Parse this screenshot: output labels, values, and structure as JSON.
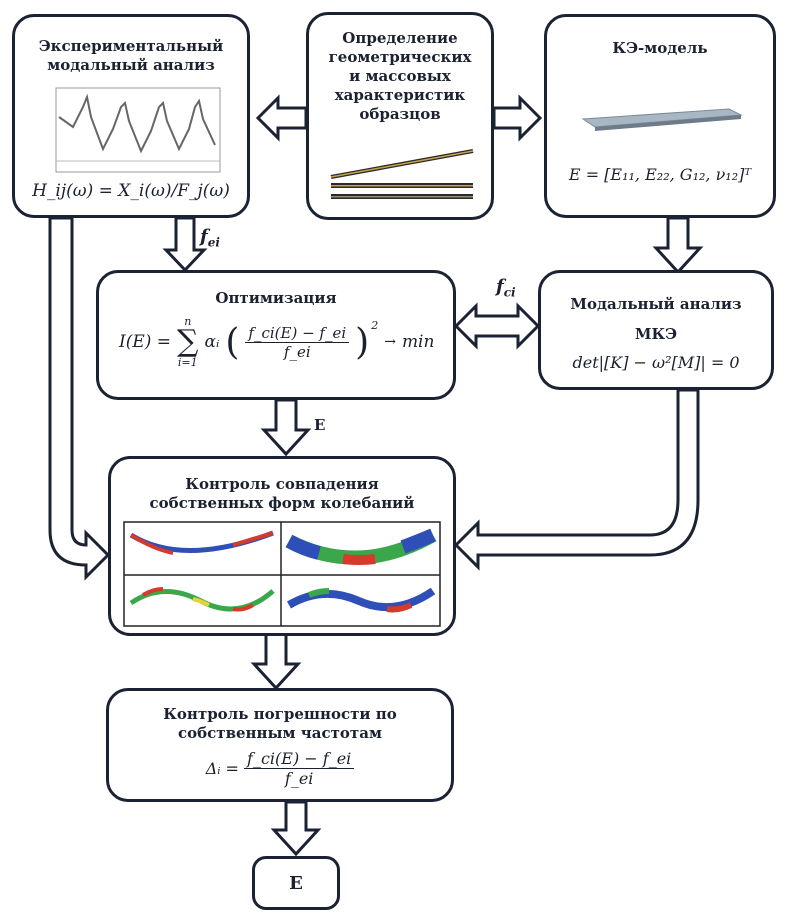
{
  "boxes": {
    "experimental": {
      "title": "Экспериментальный модальный анализ",
      "formula": "H_ij(ω) = X_i(ω)/F_j(ω)"
    },
    "specimens": {
      "title": "Определение геометрических и массовых характеристик образцов"
    },
    "fe_model": {
      "title": "КЭ-модель",
      "formula": "E = [E₁₁, E₂₂, G₁₂, ν₁₂]ᵀ"
    },
    "optimization": {
      "title": "Оптимизация",
      "formula_lhs": "I(E) =",
      "sum_top": "n",
      "sum_bottom": "i=1",
      "coef": "αᵢ",
      "frac_num": "f_ci(E) − f_ei",
      "frac_den": "f_ei",
      "rhs": "min"
    },
    "modal_fem": {
      "title_line1": "Модальный анализ",
      "title_line2": "МКЭ",
      "formula": "det|[K] − ω²[M]| = 0"
    },
    "mode_control": {
      "title": "Контроль совпадения собственных форм колебаний"
    },
    "error_control": {
      "title": "Контроль погрешности по собственным частотам",
      "lhs": "Δᵢ =",
      "frac_num": "f_ci(E) − f_ei",
      "frac_den": "f_ei"
    },
    "result": {
      "label": "E"
    }
  },
  "arrow_labels": {
    "fei": "f_ei",
    "fci": "f_ci",
    "e_opt": "E"
  },
  "colors": {
    "border": "#1a2233",
    "arrow_fill": "#ffffff",
    "mode_red": "#d63a2a",
    "mode_blue": "#2f4fb8",
    "mode_green": "#3aa84a",
    "mode_yellow": "#e8d23a"
  }
}
